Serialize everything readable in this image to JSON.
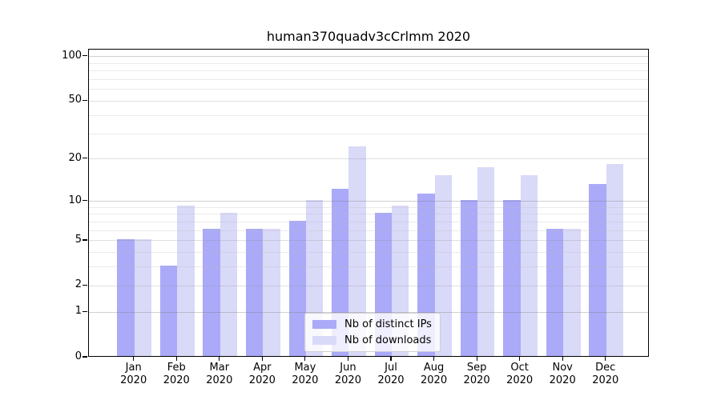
{
  "chart_data": {
    "type": "bar",
    "title": "human370quadv3cCrlmm 2020",
    "categories": [
      "Jan",
      "Feb",
      "Mar",
      "Apr",
      "May",
      "Jun",
      "Jul",
      "Aug",
      "Sep",
      "Oct",
      "Nov",
      "Dec"
    ],
    "x_tick_year": "2020",
    "series": [
      {
        "name": "Nb of distinct IPs",
        "color": "#aaaaf8",
        "values": [
          5,
          3,
          6,
          6,
          7,
          12,
          8,
          11,
          10,
          10,
          6,
          13
        ]
      },
      {
        "name": "Nb of downloads",
        "color": "#d9d9f8",
        "values": [
          5,
          9,
          8,
          6,
          10,
          24,
          9,
          15,
          17,
          15,
          6,
          18
        ]
      }
    ],
    "yscale": "log1p",
    "ylim": [
      0,
      100
    ],
    "yticks": [
      0,
      1,
      2,
      5,
      10,
      20,
      50,
      100
    ],
    "minor_yticks": [
      3,
      4,
      6,
      7,
      8,
      9,
      30,
      40,
      60,
      70,
      80,
      90
    ],
    "grid": "on",
    "legend_position": "lower center",
    "colors": {
      "bar_distinct_ips": "#aaaaf8",
      "bar_downloads": "#d9d9f8",
      "decade_gridline": "rgba(120,120,120,0.35)",
      "major_gridline": "rgba(150,150,150,0.30)",
      "minor_gridline": "rgba(190,190,190,0.30)",
      "axis": "#000000",
      "background": "#ffffff"
    }
  }
}
